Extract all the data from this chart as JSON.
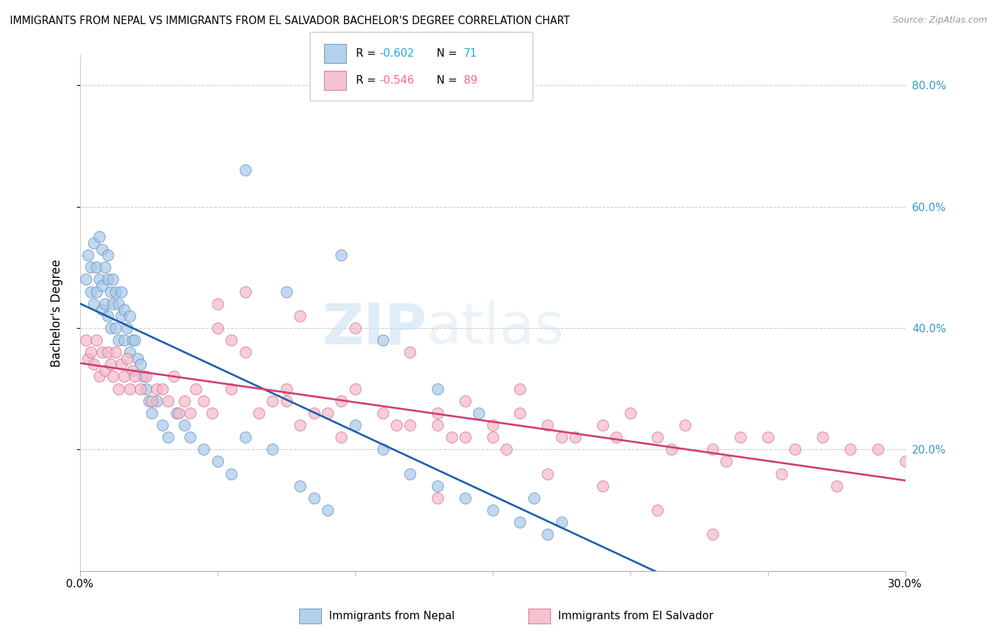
{
  "title": "IMMIGRANTS FROM NEPAL VS IMMIGRANTS FROM EL SALVADOR BACHELOR'S DEGREE CORRELATION CHART",
  "source": "Source: ZipAtlas.com",
  "ylabel": "Bachelor's Degree",
  "legend_nepal_R": "-0.602",
  "legend_nepal_N": "71",
  "legend_salvador_R": "-0.546",
  "legend_salvador_N": "89",
  "nepal_color": "#a8c8e8",
  "salvador_color": "#f4b8c8",
  "nepal_line_color": "#2060b0",
  "salvador_line_color": "#d04070",
  "nepal_edge_color": "#6090c0",
  "salvador_edge_color": "#d07090",
  "xlim": [
    0.0,
    0.3
  ],
  "ylim": [
    0.0,
    0.85
  ],
  "ytick_vals": [
    0.2,
    0.4,
    0.6,
    0.8
  ],
  "watermark": "ZIPatlas",
  "nepal_x": [
    0.002,
    0.003,
    0.004,
    0.004,
    0.005,
    0.005,
    0.006,
    0.006,
    0.007,
    0.007,
    0.008,
    0.008,
    0.008,
    0.009,
    0.009,
    0.01,
    0.01,
    0.01,
    0.011,
    0.011,
    0.012,
    0.012,
    0.013,
    0.013,
    0.014,
    0.014,
    0.015,
    0.015,
    0.016,
    0.016,
    0.017,
    0.018,
    0.018,
    0.019,
    0.02,
    0.021,
    0.022,
    0.023,
    0.024,
    0.025,
    0.026,
    0.028,
    0.03,
    0.032,
    0.035,
    0.038,
    0.04,
    0.045,
    0.05,
    0.055,
    0.06,
    0.07,
    0.08,
    0.085,
    0.09,
    0.1,
    0.11,
    0.12,
    0.13,
    0.14,
    0.15,
    0.16,
    0.17,
    0.06,
    0.075,
    0.095,
    0.11,
    0.13,
    0.145,
    0.165,
    0.175
  ],
  "nepal_y": [
    0.48,
    0.52,
    0.5,
    0.46,
    0.54,
    0.44,
    0.5,
    0.46,
    0.55,
    0.48,
    0.53,
    0.47,
    0.43,
    0.5,
    0.44,
    0.52,
    0.48,
    0.42,
    0.46,
    0.4,
    0.48,
    0.44,
    0.46,
    0.4,
    0.44,
    0.38,
    0.46,
    0.42,
    0.43,
    0.38,
    0.4,
    0.42,
    0.36,
    0.38,
    0.38,
    0.35,
    0.34,
    0.32,
    0.3,
    0.28,
    0.26,
    0.28,
    0.24,
    0.22,
    0.26,
    0.24,
    0.22,
    0.2,
    0.18,
    0.16,
    0.22,
    0.2,
    0.14,
    0.12,
    0.1,
    0.24,
    0.2,
    0.16,
    0.14,
    0.12,
    0.1,
    0.08,
    0.06,
    0.66,
    0.46,
    0.52,
    0.38,
    0.3,
    0.26,
    0.12,
    0.08
  ],
  "salvador_x": [
    0.002,
    0.003,
    0.004,
    0.005,
    0.006,
    0.007,
    0.008,
    0.009,
    0.01,
    0.011,
    0.012,
    0.013,
    0.014,
    0.015,
    0.016,
    0.017,
    0.018,
    0.019,
    0.02,
    0.022,
    0.024,
    0.026,
    0.028,
    0.03,
    0.032,
    0.034,
    0.036,
    0.038,
    0.04,
    0.042,
    0.045,
    0.048,
    0.05,
    0.055,
    0.06,
    0.065,
    0.07,
    0.075,
    0.08,
    0.085,
    0.09,
    0.095,
    0.1,
    0.11,
    0.12,
    0.13,
    0.14,
    0.15,
    0.16,
    0.17,
    0.18,
    0.19,
    0.2,
    0.21,
    0.22,
    0.23,
    0.24,
    0.25,
    0.26,
    0.27,
    0.28,
    0.29,
    0.3,
    0.05,
    0.06,
    0.08,
    0.1,
    0.12,
    0.14,
    0.16,
    0.055,
    0.075,
    0.095,
    0.115,
    0.135,
    0.155,
    0.175,
    0.195,
    0.215,
    0.235,
    0.255,
    0.275,
    0.13,
    0.15,
    0.17,
    0.19,
    0.13,
    0.21,
    0.23
  ],
  "salvador_y": [
    0.38,
    0.35,
    0.36,
    0.34,
    0.38,
    0.32,
    0.36,
    0.33,
    0.36,
    0.34,
    0.32,
    0.36,
    0.3,
    0.34,
    0.32,
    0.35,
    0.3,
    0.33,
    0.32,
    0.3,
    0.32,
    0.28,
    0.3,
    0.3,
    0.28,
    0.32,
    0.26,
    0.28,
    0.26,
    0.3,
    0.28,
    0.26,
    0.4,
    0.38,
    0.36,
    0.26,
    0.28,
    0.3,
    0.24,
    0.26,
    0.26,
    0.28,
    0.3,
    0.26,
    0.24,
    0.26,
    0.22,
    0.24,
    0.26,
    0.24,
    0.22,
    0.24,
    0.26,
    0.22,
    0.24,
    0.2,
    0.22,
    0.22,
    0.2,
    0.22,
    0.2,
    0.2,
    0.18,
    0.44,
    0.46,
    0.42,
    0.4,
    0.36,
    0.28,
    0.3,
    0.3,
    0.28,
    0.22,
    0.24,
    0.22,
    0.2,
    0.22,
    0.22,
    0.2,
    0.18,
    0.16,
    0.14,
    0.24,
    0.22,
    0.16,
    0.14,
    0.12,
    0.1,
    0.06
  ]
}
